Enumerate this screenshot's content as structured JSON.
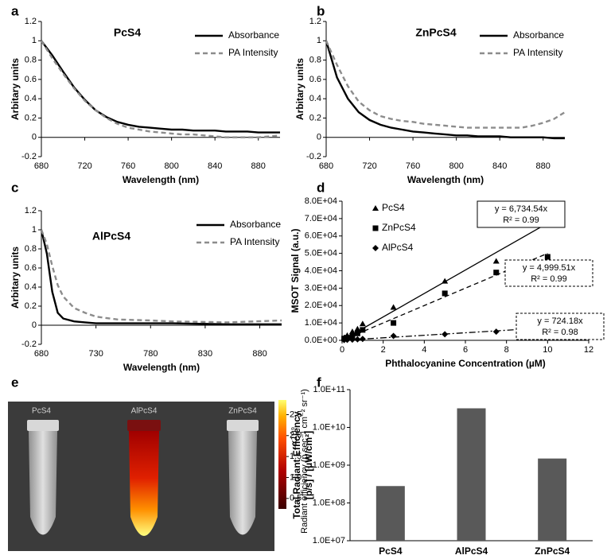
{
  "chart_data": [
    {
      "type": "line",
      "panel": "a",
      "title": "PcS4",
      "xlabel": "Wavelength (nm)",
      "ylabel": "Arbitary units",
      "x": [
        680,
        690,
        700,
        710,
        720,
        730,
        740,
        750,
        760,
        770,
        780,
        790,
        800,
        810,
        820,
        830,
        840,
        850,
        860,
        870,
        880,
        890,
        900
      ],
      "xlim": [
        680,
        900
      ],
      "xticks": [
        680,
        720,
        760,
        800,
        840,
        880
      ],
      "ylim": [
        -0.2,
        1.2
      ],
      "yticks": [
        -0.2,
        0,
        0.2,
        0.4,
        0.6,
        0.8,
        1,
        1.2
      ],
      "legend": "upper right",
      "series": [
        {
          "name": "Absorbance",
          "color": "#000000",
          "dash": "solid",
          "values": [
            1.0,
            0.85,
            0.68,
            0.52,
            0.39,
            0.28,
            0.21,
            0.16,
            0.13,
            0.11,
            0.1,
            0.09,
            0.08,
            0.08,
            0.07,
            0.07,
            0.07,
            0.06,
            0.06,
            0.06,
            0.05,
            0.05,
            0.05
          ]
        },
        {
          "name": "PA Intensity",
          "color": "#8c8c8c",
          "dash": "dashed",
          "values": [
            1.0,
            0.82,
            0.66,
            0.51,
            0.38,
            0.28,
            0.2,
            0.14,
            0.1,
            0.08,
            0.06,
            0.05,
            0.04,
            0.03,
            0.03,
            0.02,
            0.01,
            0.0,
            0.0,
            0.0,
            0.0,
            0.01,
            0.02
          ]
        }
      ]
    },
    {
      "type": "line",
      "panel": "b",
      "title": "ZnPcS4",
      "xlabel": "Wavelength (nm)",
      "ylabel": "Arbitary units",
      "x": [
        680,
        690,
        700,
        710,
        720,
        730,
        740,
        750,
        760,
        770,
        780,
        790,
        800,
        810,
        820,
        830,
        840,
        850,
        860,
        870,
        880,
        890,
        900
      ],
      "xlim": [
        680,
        900
      ],
      "xticks": [
        680,
        720,
        760,
        800,
        840,
        880
      ],
      "ylim": [
        -0.2,
        1.2
      ],
      "yticks": [
        -0.2,
        0,
        0.2,
        0.4,
        0.6,
        0.8,
        1,
        1.2
      ],
      "legend": "upper right",
      "series": [
        {
          "name": "Absorbance",
          "color": "#000000",
          "dash": "solid",
          "values": [
            1.0,
            0.62,
            0.4,
            0.26,
            0.18,
            0.13,
            0.1,
            0.08,
            0.06,
            0.05,
            0.04,
            0.03,
            0.02,
            0.02,
            0.01,
            0.01,
            0.01,
            0.0,
            0.0,
            0.0,
            0.0,
            -0.01,
            -0.01
          ]
        },
        {
          "name": "PA Intensity",
          "color": "#8c8c8c",
          "dash": "dashed",
          "values": [
            1.0,
            0.75,
            0.53,
            0.37,
            0.28,
            0.22,
            0.19,
            0.17,
            0.16,
            0.14,
            0.13,
            0.12,
            0.11,
            0.1,
            0.1,
            0.1,
            0.1,
            0.1,
            0.1,
            0.12,
            0.15,
            0.19,
            0.26
          ]
        }
      ]
    },
    {
      "type": "line",
      "panel": "c",
      "title": "AlPcS4",
      "xlabel": "Wavelength (nm)",
      "ylabel": "Arbitary units",
      "x": [
        680,
        685,
        690,
        695,
        700,
        710,
        720,
        730,
        750,
        780,
        800,
        850,
        900
      ],
      "xlim": [
        680,
        900
      ],
      "xticks": [
        680,
        730,
        780,
        830,
        880
      ],
      "ylim": [
        -0.2,
        1.2
      ],
      "yticks": [
        -0.2,
        0,
        0.2,
        0.4,
        0.6,
        0.8,
        1,
        1.2
      ],
      "legend": "upper right",
      "series": [
        {
          "name": "Absorbance",
          "color": "#000000",
          "dash": "solid",
          "values": [
            1.0,
            0.75,
            0.35,
            0.13,
            0.07,
            0.04,
            0.03,
            0.02,
            0.02,
            0.02,
            0.02,
            0.01,
            0.01
          ]
        },
        {
          "name": "PA Intensity",
          "color": "#8c8c8c",
          "dash": "dashed",
          "values": [
            1.0,
            0.85,
            0.62,
            0.42,
            0.3,
            0.18,
            0.13,
            0.09,
            0.06,
            0.05,
            0.04,
            0.03,
            0.05
          ]
        }
      ]
    },
    {
      "type": "scatter",
      "panel": "d",
      "xlabel": "Phthalocyanine Concentration (µM)",
      "ylabel": "MSOT Signal (a.u.)",
      "x": [
        0.1,
        0.25,
        0.5,
        0.75,
        1,
        2.5,
        5,
        7.5,
        10
      ],
      "xlim": [
        0,
        12
      ],
      "xticks": [
        0,
        2,
        4,
        6,
        8,
        10,
        12
      ],
      "ylim": [
        0,
        80000
      ],
      "yticks": [
        {
          "value": 0,
          "label": "0.0E+00"
        },
        {
          "value": 10000,
          "label": "1.0E+04"
        },
        {
          "value": 20000,
          "label": "2.0E+04"
        },
        {
          "value": 30000,
          "label": "3.0E+04"
        },
        {
          "value": 40000,
          "label": "4.0E+04"
        },
        {
          "value": 50000,
          "label": "5.0E+04"
        },
        {
          "value": 60000,
          "label": "6.0E+04"
        },
        {
          "value": 70000,
          "label": "7.0E+04"
        },
        {
          "value": 80000,
          "label": "8.0E+04"
        }
      ],
      "legend": "upper left",
      "series": [
        {
          "name": "PcS4",
          "marker": "triangle",
          "color": "#000000",
          "values": [
            1500,
            2800,
            5000,
            6500,
            9500,
            19000,
            34000,
            45500,
            69000
          ],
          "trendline": {
            "slope": 6734.54,
            "dash": "solid",
            "box": "solid",
            "label": "y = 6,734.54x",
            "r2_label": "R² = 0.99"
          }
        },
        {
          "name": "ZnPcS4",
          "marker": "square",
          "color": "#000000",
          "values": [
            1000,
            1500,
            2500,
            4000,
            6000,
            10000,
            27000,
            39000,
            48000
          ],
          "trendline": {
            "slope": 4999.51,
            "dash": "dashed",
            "box": "dashed",
            "label": "y = 4,999.51x",
            "r2_label": "R² = 0.99"
          }
        },
        {
          "name": "AlPcS4",
          "marker": "diamond",
          "color": "#000000",
          "values": [
            200,
            300,
            400,
            600,
            800,
            2500,
            3500,
            5000,
            7000
          ],
          "trendline": {
            "slope": 724.18,
            "dash": "dashdot",
            "box": "dashed",
            "label": "y = 724.18x",
            "r2_label": "R² = 0.98"
          }
        }
      ]
    },
    {
      "type": "image",
      "panel": "e",
      "labels": [
        "PcS4",
        "AlPcS4",
        "ZnPcS4"
      ],
      "colorbar": {
        "label": "Radiant efficiency (p sec⁻¹ cm⁻² sr⁻¹)",
        "multiplier": "x10⁹",
        "clim": [
          0.25,
          2.85
        ],
        "ticks": [
          {
            "value": 0.5,
            "label": "0.5"
          },
          {
            "value": 1,
            "label": "1.0"
          },
          {
            "value": 1.5,
            "label": "1.5"
          },
          {
            "value": 2,
            "label": "2.0"
          },
          {
            "value": 2.5,
            "label": "2.5"
          }
        ]
      }
    },
    {
      "type": "bar",
      "panel": "f",
      "ylabel": [
        "Total Radiant Efficiency",
        "[p/s] / [µW/cm²]"
      ],
      "categories": [
        "PcS4",
        "AlPcS4",
        "ZnPcS4"
      ],
      "values": [
        280000000,
        32000000000,
        1500000000
      ],
      "color": "#595959",
      "log": true,
      "ylim": [
        10000000,
        100000000000
      ],
      "yticks": [
        {
          "value": 10000000,
          "label": "1.0E+07"
        },
        {
          "value": 100000000,
          "label": "1.0E+08"
        },
        {
          "value": 1000000000,
          "label": "1.0E+09"
        },
        {
          "value": 10000000000,
          "label": "1.0E+10"
        },
        {
          "value": 100000000000,
          "label": "1.0E+11"
        }
      ]
    }
  ]
}
